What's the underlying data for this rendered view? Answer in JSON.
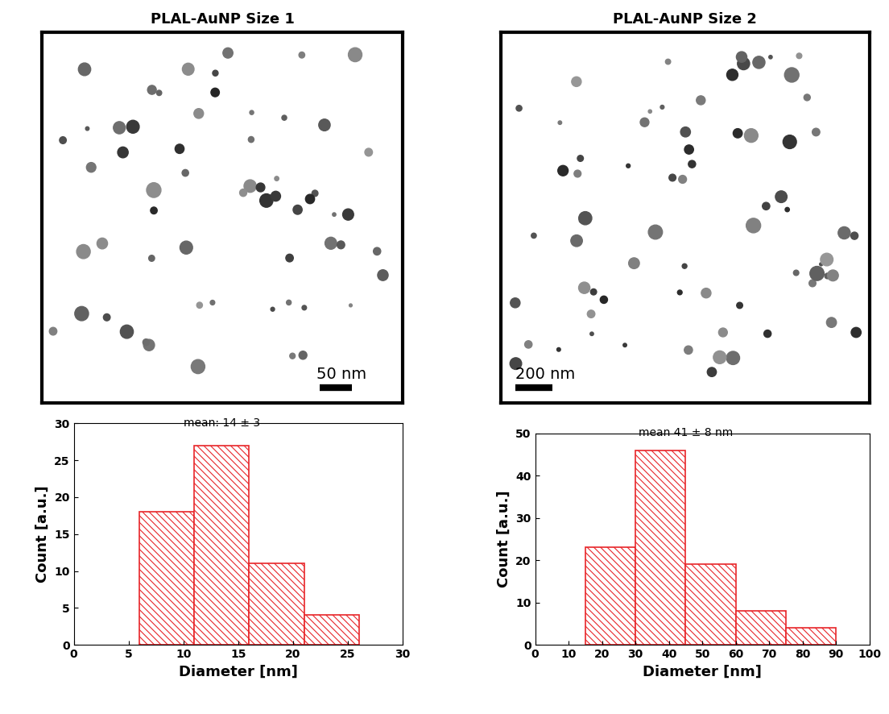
{
  "images": [
    {
      "title": "PLAL-AuNP Size 1",
      "scale_bar": "50 nm"
    },
    {
      "title": "PLAL-AuNP Size 2",
      "scale_bar": "200 nm"
    }
  ],
  "chart_data": [
    {
      "type": "histogram",
      "annotation": "mean: 14 ± 3",
      "x_label": "Diameter [nm]",
      "y_label": "Count [a.u.]",
      "bins": [
        6,
        11,
        16,
        21,
        26
      ],
      "counts": [
        18,
        27,
        11,
        4
      ],
      "color": "#e8262a",
      "xlim": [
        0,
        30
      ],
      "xticks": [
        0,
        5,
        10,
        15,
        20,
        25,
        30
      ],
      "ylim": [
        0,
        30
      ],
      "yticks": [
        0,
        5,
        10,
        15,
        20,
        25,
        30
      ]
    },
    {
      "type": "histogram",
      "annotation": "mean 41 ± 8 nm",
      "x_label": "Diameter [nm]",
      "y_label": "Count [a.u.]",
      "bins": [
        15,
        30,
        45,
        60,
        75,
        90
      ],
      "counts": [
        23,
        46,
        19,
        8,
        4
      ],
      "color": "#e8262a",
      "xlim": [
        0,
        100
      ],
      "xticks": [
        0,
        10,
        20,
        30,
        40,
        50,
        60,
        70,
        80,
        90,
        100
      ],
      "ylim": [
        0,
        50
      ],
      "yticks": [
        0,
        10,
        20,
        30,
        40,
        50
      ]
    }
  ]
}
